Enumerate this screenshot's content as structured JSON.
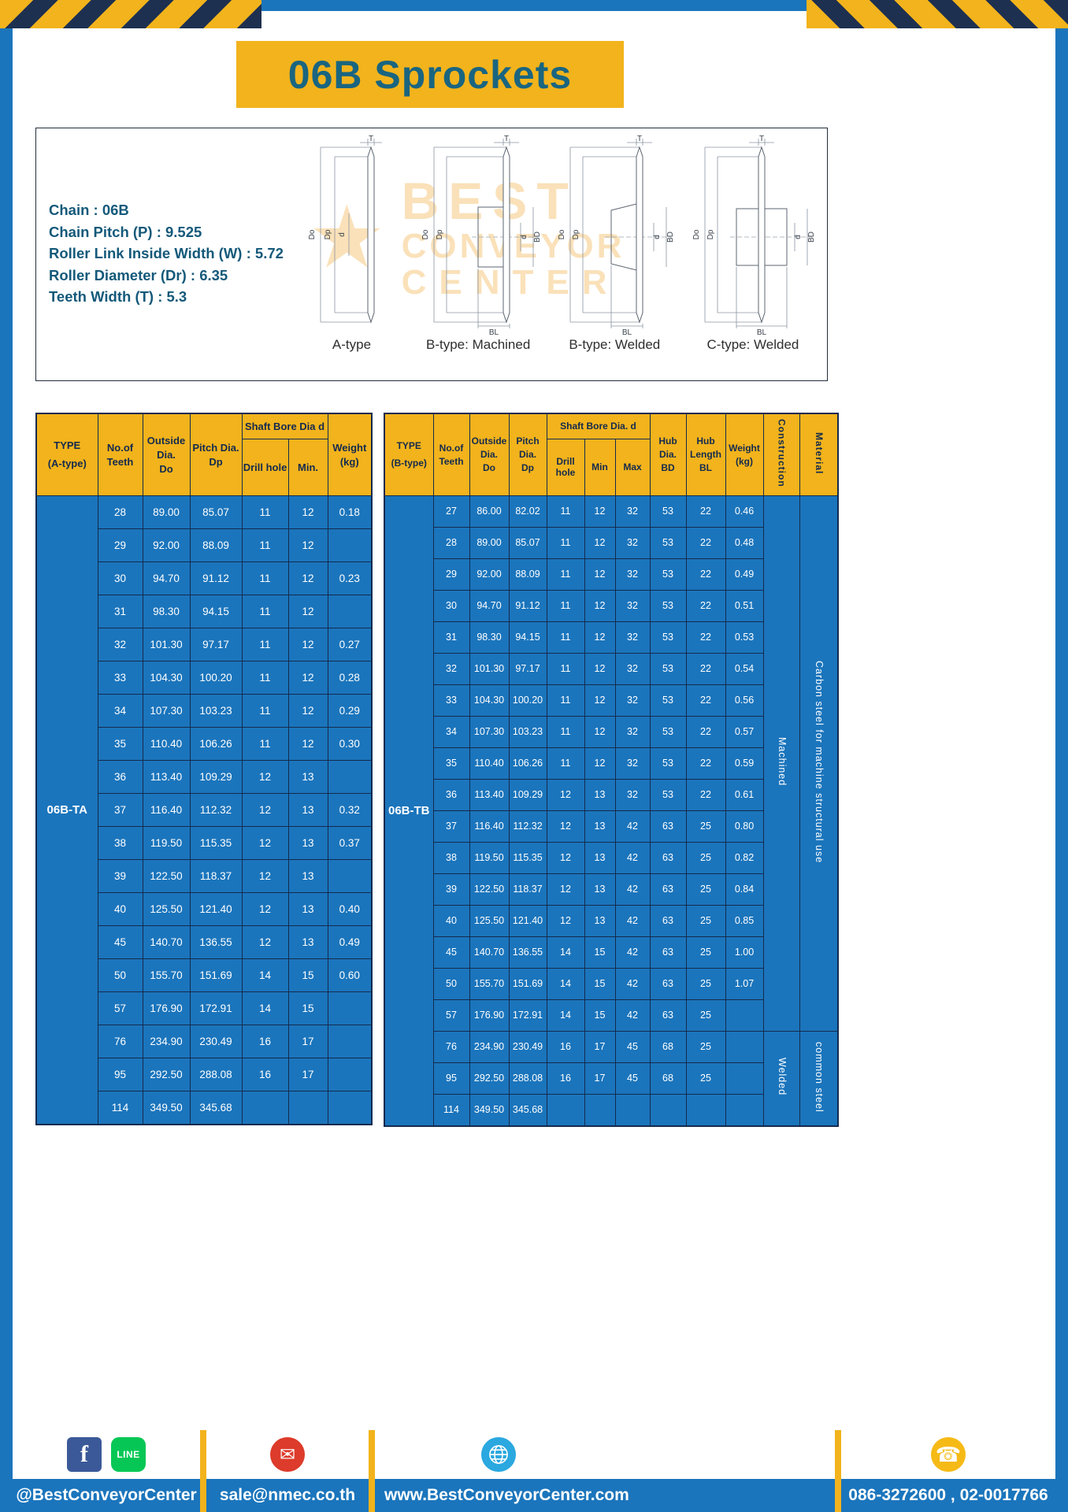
{
  "title": "06B Sprockets",
  "specs": [
    "Chain : 06B",
    "Chain Pitch (P) : 9.525",
    "Roller Link Inside Width (W) : 5.72",
    "Roller Diameter (Dr) : 6.35",
    "Teeth Width (T) : 5.3"
  ],
  "figures": [
    "A-type",
    "B-type: Machined",
    "B-type: Welded",
    "C-type: Welded"
  ],
  "dims": {
    "T": "T",
    "Do": "Do",
    "Dp": "Dp",
    "d": "d",
    "BD": "BD",
    "BL": "BL"
  },
  "watermark": {
    "star": "★",
    "line1": "BEST",
    "line2": "CONVEYOR",
    "line3": "CENTER"
  },
  "colors": {
    "frame_blue": "#1b75bc",
    "accent_yellow": "#f2b31c",
    "table_border_navy": "#142a4e",
    "title_teal": "#1a6580",
    "watermark_orange": "#f09d1c"
  },
  "table_a": {
    "header": {
      "type_l1": "TYPE",
      "type_l2": "(A-type)",
      "teeth_l1": "No.of",
      "teeth_l2": "Teeth",
      "outside_l1": "Outside",
      "outside_l2": "Dia.",
      "outside_l3": "Do",
      "pitch_l1": "Pitch Dia.",
      "pitch_l2": "Dp",
      "shaft": "Shaft Bore Dia d",
      "drill": "Drill hole",
      "min": "Min.",
      "weight_l1": "Weight",
      "weight_l2": "(kg)"
    },
    "span_cells": [
      {
        "at": 0,
        "pos": "start",
        "rowspan": 19,
        "label": "06B-TA",
        "cls": "type-cell",
        "name": "type-cell-06b-ta"
      }
    ],
    "rows": [
      [
        "28",
        "89.00",
        "85.07",
        "11",
        "12",
        "0.18"
      ],
      [
        "29",
        "92.00",
        "88.09",
        "11",
        "12",
        ""
      ],
      [
        "30",
        "94.70",
        "91.12",
        "11",
        "12",
        "0.23"
      ],
      [
        "31",
        "98.30",
        "94.15",
        "11",
        "12",
        ""
      ],
      [
        "32",
        "101.30",
        "97.17",
        "11",
        "12",
        "0.27"
      ],
      [
        "33",
        "104.30",
        "100.20",
        "11",
        "12",
        "0.28"
      ],
      [
        "34",
        "107.30",
        "103.23",
        "11",
        "12",
        "0.29"
      ],
      [
        "35",
        "110.40",
        "106.26",
        "11",
        "12",
        "0.30"
      ],
      [
        "36",
        "113.40",
        "109.29",
        "12",
        "13",
        ""
      ],
      [
        "37",
        "116.40",
        "112.32",
        "12",
        "13",
        "0.32"
      ],
      [
        "38",
        "119.50",
        "115.35",
        "12",
        "13",
        "0.37"
      ],
      [
        "39",
        "122.50",
        "118.37",
        "12",
        "13",
        ""
      ],
      [
        "40",
        "125.50",
        "121.40",
        "12",
        "13",
        "0.40"
      ],
      [
        "45",
        "140.70",
        "136.55",
        "12",
        "13",
        "0.49"
      ],
      [
        "50",
        "155.70",
        "151.69",
        "14",
        "15",
        "0.60"
      ],
      [
        "57",
        "176.90",
        "172.91",
        "14",
        "15",
        ""
      ],
      [
        "76",
        "234.90",
        "230.49",
        "16",
        "17",
        ""
      ],
      [
        "95",
        "292.50",
        "288.08",
        "16",
        "17",
        ""
      ],
      [
        "114",
        "349.50",
        "345.68",
        "",
        "",
        ""
      ]
    ]
  },
  "table_b": {
    "header": {
      "type_l1": "TYPE",
      "type_l2": "(B-type)",
      "teeth_l1": "No.of",
      "teeth_l2": "Teeth",
      "outside_l1": "Outside",
      "outside_l2": "Dia.",
      "outside_l3": "Do",
      "pitch_l1": "Pitch",
      "pitch_l2": "Dia.",
      "pitch_l3": "Dp",
      "shaft": "Shaft Bore Dia. d",
      "drill": "Drill hole",
      "min": "Min",
      "max": "Max",
      "hubdia_l1": "Hub",
      "hubdia_l2": "Dia.",
      "hubdia_l3": "BD",
      "hublen_l1": "Hub",
      "hublen_l2": "Length",
      "hublen_l3": "BL",
      "weight_l1": "Weight",
      "weight_l2": "(kg)",
      "construction": "Construction",
      "material": "Material"
    },
    "span_cells": [
      {
        "at": 0,
        "pos": "start",
        "rowspan": 20,
        "label": "06B-TB",
        "cls": "type-cell",
        "name": "type-cell-06b-tb"
      },
      {
        "at": 0,
        "pos": "end",
        "rowspan": 17,
        "label": "Machined",
        "cls": "vert-cell",
        "name": "construction-machined-cell"
      },
      {
        "at": 0,
        "pos": "end",
        "rowspan": 17,
        "label": "Carbon steel for machine structural use",
        "cls": "vert-cell",
        "name": "material-carbon-steel-cell"
      },
      {
        "at": 17,
        "pos": "end",
        "rowspan": 3,
        "label": "Welded",
        "cls": "vert-cell",
        "name": "construction-welded-cell"
      },
      {
        "at": 17,
        "pos": "end",
        "rowspan": 3,
        "label": "common steel",
        "cls": "vert-cell",
        "name": "material-common-steel-cell"
      }
    ],
    "rows": [
      [
        "27",
        "86.00",
        "82.02",
        "11",
        "12",
        "32",
        "53",
        "22",
        "0.46"
      ],
      [
        "28",
        "89.00",
        "85.07",
        "11",
        "12",
        "32",
        "53",
        "22",
        "0.48"
      ],
      [
        "29",
        "92.00",
        "88.09",
        "11",
        "12",
        "32",
        "53",
        "22",
        "0.49"
      ],
      [
        "30",
        "94.70",
        "91.12",
        "11",
        "12",
        "32",
        "53",
        "22",
        "0.51"
      ],
      [
        "31",
        "98.30",
        "94.15",
        "11",
        "12",
        "32",
        "53",
        "22",
        "0.53"
      ],
      [
        "32",
        "101.30",
        "97.17",
        "11",
        "12",
        "32",
        "53",
        "22",
        "0.54"
      ],
      [
        "33",
        "104.30",
        "100.20",
        "11",
        "12",
        "32",
        "53",
        "22",
        "0.56"
      ],
      [
        "34",
        "107.30",
        "103.23",
        "11",
        "12",
        "32",
        "53",
        "22",
        "0.57"
      ],
      [
        "35",
        "110.40",
        "106.26",
        "11",
        "12",
        "32",
        "53",
        "22",
        "0.59"
      ],
      [
        "36",
        "113.40",
        "109.29",
        "12",
        "13",
        "32",
        "53",
        "22",
        "0.61"
      ],
      [
        "37",
        "116.40",
        "112.32",
        "12",
        "13",
        "42",
        "63",
        "25",
        "0.80"
      ],
      [
        "38",
        "119.50",
        "115.35",
        "12",
        "13",
        "42",
        "63",
        "25",
        "0.82"
      ],
      [
        "39",
        "122.50",
        "118.37",
        "12",
        "13",
        "42",
        "63",
        "25",
        "0.84"
      ],
      [
        "40",
        "125.50",
        "121.40",
        "12",
        "13",
        "42",
        "63",
        "25",
        "0.85"
      ],
      [
        "45",
        "140.70",
        "136.55",
        "14",
        "15",
        "42",
        "63",
        "25",
        "1.00"
      ],
      [
        "50",
        "155.70",
        "151.69",
        "14",
        "15",
        "42",
        "63",
        "25",
        "1.07"
      ],
      [
        "57",
        "176.90",
        "172.91",
        "14",
        "15",
        "42",
        "63",
        "25",
        ""
      ],
      [
        "76",
        "234.90",
        "230.49",
        "16",
        "17",
        "45",
        "68",
        "25",
        ""
      ],
      [
        "95",
        "292.50",
        "288.08",
        "16",
        "17",
        "45",
        "68",
        "25",
        ""
      ],
      [
        "114",
        "349.50",
        "345.68",
        "",
        "",
        "",
        "",
        "",
        ""
      ]
    ]
  },
  "footer": {
    "facebook_glyph": "f",
    "line_label": "LINE",
    "facebook_handle": "@BestConveyorCenter",
    "email": "sale@nmec.co.th",
    "website": "www.BestConveyorCenter.com",
    "phones": "086-3272600 , 02-0017766"
  }
}
